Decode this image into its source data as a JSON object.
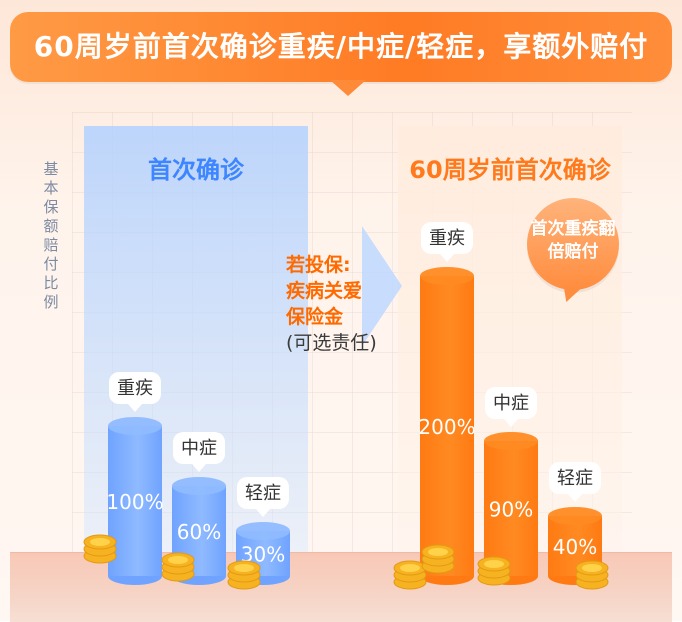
{
  "banner": {
    "title": "60周岁前首次确诊重疾/中症/轻症，享额外赔付"
  },
  "yaxis": {
    "label": "基本保额赔付比例"
  },
  "left": {
    "title": "首次确诊"
  },
  "right": {
    "title": "60周岁前首次确诊",
    "badge": "首次重疾翻倍赔付"
  },
  "note": {
    "line1": "若投保:",
    "line2": "疾病关爱",
    "line3": "保险金",
    "line4": "(可选责任)"
  },
  "colors": {
    "blue": "#8fbaff",
    "orange": "#ff8a22",
    "banner": "#ff7b24"
  },
  "chart_data": [
    {
      "type": "bar",
      "title": "首次确诊",
      "categories": [
        "重疾",
        "中症",
        "轻症"
      ],
      "values": [
        100,
        60,
        30
      ],
      "value_labels": [
        "100%",
        "60%",
        "30%"
      ],
      "ylabel": "基本保额赔付比例",
      "ylim": [
        0,
        200
      ]
    },
    {
      "type": "bar",
      "title": "60周岁前首次确诊",
      "categories": [
        "重疾",
        "中症",
        "轻症"
      ],
      "values": [
        200,
        90,
        40
      ],
      "value_labels": [
        "200%",
        "90%",
        "40%"
      ],
      "ylabel": "基本保额赔付比例",
      "ylim": [
        0,
        200
      ]
    }
  ]
}
